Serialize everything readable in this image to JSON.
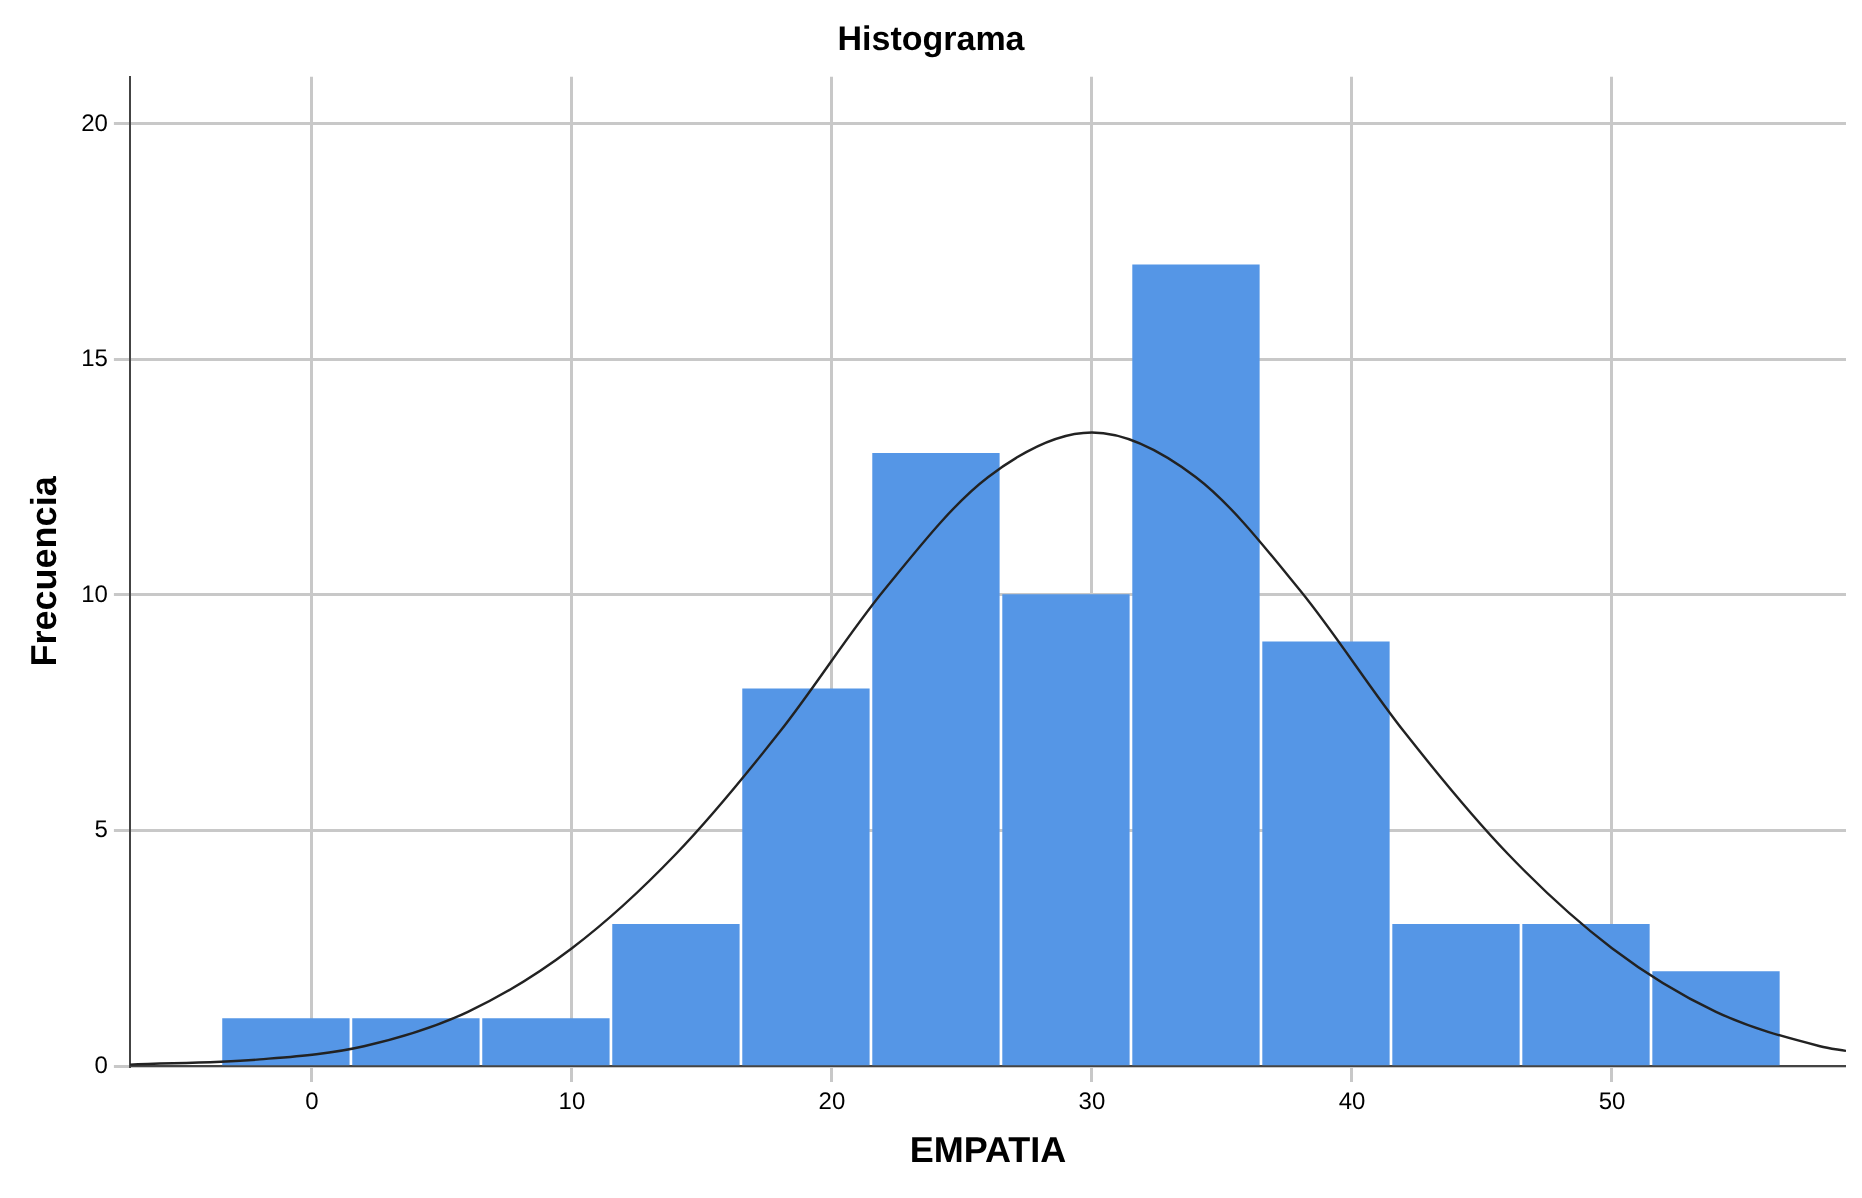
{
  "chart_data": {
    "type": "histogram",
    "title": "Histograma",
    "xlabel": "EMPATIA",
    "ylabel": "Frecuencia",
    "bins": [
      -3.5,
      1.5,
      6.5,
      11.5,
      16.5,
      21.5,
      26.5,
      31.5,
      36.5,
      41.5,
      46.5,
      51.5,
      56.5
    ],
    "values": [
      1,
      1,
      1,
      3,
      8,
      13,
      10,
      17,
      9,
      3,
      3,
      2
    ],
    "color": "#5596e6",
    "series": [
      {
        "type": "line",
        "color": "#222222",
        "x": [
          -7,
          -2,
          2,
          6,
          10,
          14,
          18,
          22,
          26,
          30,
          34,
          38,
          42,
          46,
          50,
          54,
          58,
          59
        ],
        "values": [
          0.03,
          0.14,
          0.42,
          1.15,
          2.5,
          4.5,
          7.1,
          10.1,
          12.5,
          13.45,
          12.5,
          10.1,
          7.1,
          4.5,
          2.5,
          1.15,
          0.42,
          0.32
        ]
      }
    ],
    "xlim": [
      -7,
      59
    ],
    "ylim": [
      0,
      21
    ],
    "xticks": [
      0,
      10,
      20,
      30,
      40,
      50
    ],
    "yticks": [
      0,
      5,
      10,
      15,
      20
    ],
    "grid": true,
    "legend": false
  }
}
